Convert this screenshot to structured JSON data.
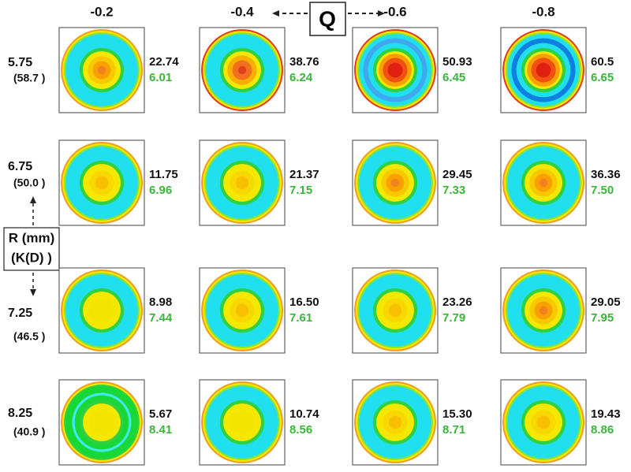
{
  "header": {
    "q_label": "Q",
    "columns": [
      "-0.2",
      "-0.4",
      "-0.6",
      "-0.8"
    ]
  },
  "axis_label": {
    "line1": "R (mm)",
    "line2": "(K(D) )"
  },
  "rows": [
    {
      "r": "5.75",
      "k": "(58.7 )",
      "cells": [
        [
          "22.74",
          "6.01"
        ],
        [
          "38.76",
          "6.24"
        ],
        [
          "50.93",
          "6.45"
        ],
        [
          "60.5",
          "6.65"
        ]
      ]
    },
    {
      "r": "6.75",
      "k": "(50.0 )",
      "cells": [
        [
          "11.75",
          "6.96"
        ],
        [
          "21.37",
          "7.15"
        ],
        [
          "29.45",
          "7.33"
        ],
        [
          "36.36",
          "7.50"
        ]
      ]
    },
    {
      "r": "7.25",
      "k": "(46.5 )",
      "cells": [
        [
          "8.98",
          "7.44"
        ],
        [
          "16.50",
          "7.61"
        ],
        [
          "23.26",
          "7.79"
        ],
        [
          "29.05",
          "7.95"
        ]
      ]
    },
    {
      "r": "8.25",
      "k": "(40.9 )",
      "cells": [
        [
          "5.67",
          "8.41"
        ],
        [
          "10.74",
          "8.56"
        ],
        [
          "15.30",
          "8.71"
        ],
        [
          "19.43",
          "8.86"
        ]
      ]
    }
  ]
}
